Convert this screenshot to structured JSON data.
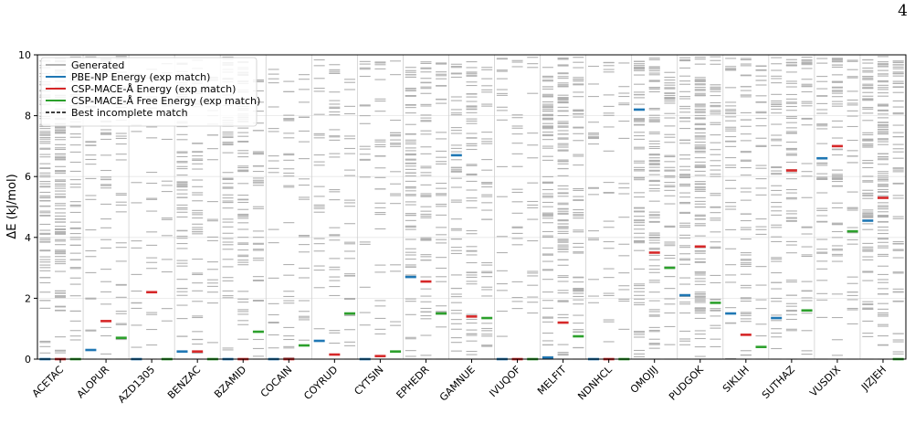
{
  "page_number": "4",
  "chart_data": {
    "type": "strip",
    "ylabel": "ΔE (kJ/mol)",
    "ylim": [
      0,
      10
    ],
    "yticks": [
      0,
      2,
      4,
      6,
      8,
      10
    ],
    "grid": true,
    "legend_position": "top-left",
    "legend": [
      {
        "label": "Generated",
        "color": "#b0b0b0",
        "dash": false
      },
      {
        "label": "PBE-NP Energy (exp match)",
        "color": "#1f77b4",
        "dash": false
      },
      {
        "label": "CSP-MACE-Å Energy (exp match)",
        "color": "#d62728",
        "dash": false
      },
      {
        "label": "CSP-MACE-Å Free Energy (exp match)",
        "color": "#2ca02c",
        "dash": false
      },
      {
        "label": "Best incomplete match",
        "color": "#000000",
        "dash": true
      }
    ],
    "categories": [
      "ACETAC",
      "ALOPUR",
      "AZD1305",
      "BENZAC",
      "BZAMID",
      "COCAIN",
      "COYRUD",
      "CYTSIN",
      "EPHEDR",
      "GAMNUE",
      "IVUQOF",
      "MELFIT",
      "NDNHCL",
      "OMOJIJ",
      "PUDGOK",
      "SIKLIH",
      "SUTHAZ",
      "VUSDIX",
      "JIZJEH"
    ],
    "columns_per_category": [
      "PBE-NP Energy",
      "CSP-MACE-Å Energy",
      "CSP-MACE-Å Free Energy"
    ],
    "generated_density": [
      [
        90,
        120,
        60
      ],
      [
        25,
        40,
        30
      ],
      [
        15,
        20,
        15
      ],
      [
        70,
        50,
        30
      ],
      [
        60,
        70,
        40
      ],
      [
        20,
        30,
        25
      ],
      [
        25,
        35,
        30
      ],
      [
        20,
        30,
        20
      ],
      [
        70,
        55,
        40
      ],
      [
        50,
        60,
        40
      ],
      [
        20,
        25,
        20
      ],
      [
        80,
        100,
        60
      ],
      [
        20,
        25,
        20
      ],
      [
        70,
        90,
        50
      ],
      [
        60,
        110,
        50
      ],
      [
        40,
        55,
        35
      ],
      [
        50,
        60,
        40
      ],
      [
        40,
        55,
        35
      ],
      [
        80,
        100,
        60
      ]
    ],
    "exp_match": {
      "PBE-NP Energy": [
        0.0,
        0.3,
        0.0,
        0.25,
        0.0,
        0.0,
        0.6,
        0.0,
        2.7,
        6.7,
        0.0,
        0.05,
        0.0,
        8.2,
        2.1,
        1.5,
        1.35,
        6.6,
        4.55
      ],
      "CSP-MACE-Å Energy": [
        0.0,
        1.25,
        2.2,
        0.25,
        0.0,
        0.0,
        0.15,
        0.1,
        2.55,
        1.4,
        0.0,
        1.2,
        0.0,
        3.5,
        3.7,
        0.8,
        6.2,
        7.0,
        5.3
      ],
      "CSP-MACE-Å Free Energy": [
        0.0,
        0.7,
        0.0,
        0.0,
        0.9,
        0.45,
        1.5,
        0.25,
        1.5,
        1.35,
        0.0,
        0.75,
        0.0,
        3.0,
        1.85,
        0.4,
        1.6,
        4.2,
        0.0
      ]
    }
  }
}
